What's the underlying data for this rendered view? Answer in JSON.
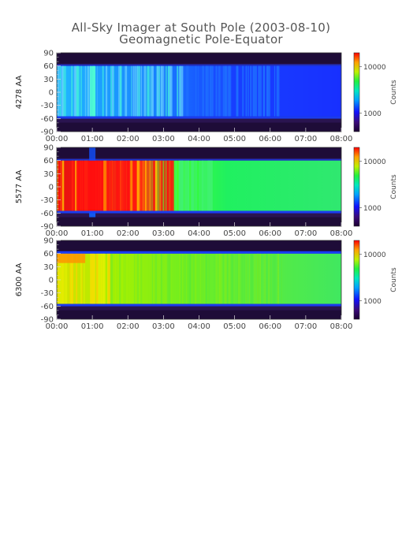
{
  "title": "All-Sky Imager at South Pole (2003-08-10)",
  "subtitle": "Geomagnetic Pole-Equator",
  "colorbar_label": "Counts",
  "chart_data": [
    {
      "type": "heatmap",
      "ylabel": "4278 AA",
      "y_ticks": [
        "90",
        "60",
        "30",
        "0",
        "-30",
        "-60",
        "-90"
      ],
      "x_ticks": [
        "00:00",
        "01:00",
        "02:00",
        "03:00",
        "04:00",
        "05:00",
        "06:00",
        "07:00",
        "08:00"
      ],
      "xlim": [
        "00:00",
        "08:00"
      ],
      "ylim": [
        -90,
        90
      ],
      "band_latitude": [
        -55,
        60
      ],
      "colorbar_ticks": [
        "10000",
        "1000"
      ],
      "colorbar_range": [
        400,
        20000
      ],
      "colors": {
        "band_start": "#1e9cf0",
        "band_end": "#1428ff",
        "background": "#2a1450",
        "bright": "#40e0d0"
      }
    },
    {
      "type": "heatmap",
      "ylabel": "5577 AA",
      "y_ticks": [
        "90",
        "60",
        "30",
        "0",
        "-30",
        "-60",
        "-90"
      ],
      "x_ticks": [
        "00:00",
        "01:00",
        "02:00",
        "03:00",
        "04:00",
        "05:00",
        "06:00",
        "07:00",
        "08:00"
      ],
      "xlim": [
        "00:00",
        "08:00"
      ],
      "ylim": [
        -90,
        90
      ],
      "band_latitude": [
        -55,
        60
      ],
      "colorbar_ticks": [
        "10000",
        "1000"
      ],
      "colorbar_range": [
        400,
        20000
      ],
      "colors": {
        "band_start": "#e81010",
        "band_end": "#20e858",
        "background": "#2a1450",
        "bright": "#ffd000"
      }
    },
    {
      "type": "heatmap",
      "ylabel": "6300 AA",
      "y_ticks": [
        "90",
        "60",
        "30",
        "0",
        "-30",
        "-60",
        "-90"
      ],
      "x_ticks": [
        "00:00",
        "01:00",
        "02:00",
        "03:00",
        "04:00",
        "05:00",
        "06:00",
        "07:00",
        "08:00"
      ],
      "xlim": [
        "00:00",
        "08:00"
      ],
      "ylim": [
        -90,
        90
      ],
      "band_latitude": [
        -55,
        60
      ],
      "colorbar_ticks": [
        "10000",
        "1000"
      ],
      "colorbar_range": [
        400,
        20000
      ],
      "colors": {
        "band_start": "#b8f000",
        "band_end": "#30e870",
        "background": "#2a1450",
        "bright": "#ffc000"
      }
    }
  ]
}
